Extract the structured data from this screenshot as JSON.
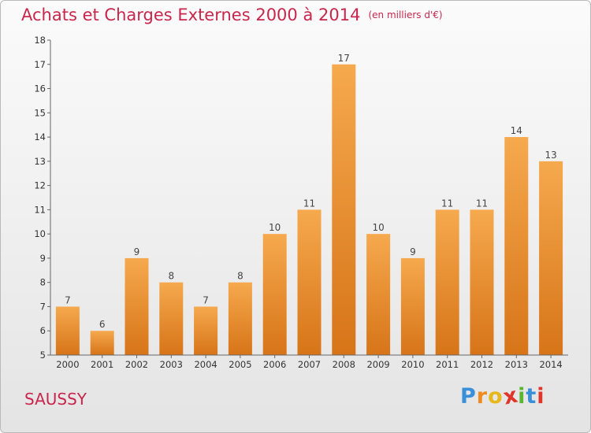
{
  "header": {
    "title": "Achats et Charges Externes 2000 à 2014",
    "subtitle": "(en milliers d'€)"
  },
  "footer": {
    "place": "SAUSSY",
    "logo_letters": [
      "P",
      "r",
      "o",
      "x",
      "i",
      "t",
      "i"
    ],
    "logo_colors": [
      "#3a8fd9",
      "#f08a1c",
      "#e8b81a",
      "#e0352b",
      "#5ab531",
      "#3a8fd9",
      "#e0352b"
    ]
  },
  "colors": {
    "bar_light": "#f6a94e",
    "bar_dark": "#d77418",
    "accent": "#c8264c"
  },
  "chart_data": {
    "type": "bar",
    "title": "Achats et Charges Externes 2000 à 2014",
    "subtitle": "(en milliers d'€)",
    "categories": [
      "2000",
      "2001",
      "2002",
      "2003",
      "2004",
      "2005",
      "2006",
      "2007",
      "2008",
      "2009",
      "2010",
      "2011",
      "2012",
      "2013",
      "2014"
    ],
    "values": [
      7,
      6,
      9,
      8,
      7,
      8,
      10,
      11,
      17,
      10,
      9,
      11,
      11,
      14,
      13
    ],
    "data_labels": [
      "7",
      "6",
      "9",
      "8",
      "7",
      "8",
      "10",
      "11",
      "17",
      "10",
      "9",
      "11",
      "11",
      "14",
      "13"
    ],
    "ylim": [
      5,
      18
    ],
    "yticks": [
      5,
      6,
      7,
      8,
      9,
      10,
      11,
      12,
      13,
      14,
      15,
      16,
      17,
      18
    ],
    "grid": false,
    "legend": "none",
    "xlabel": "",
    "ylabel": ""
  }
}
